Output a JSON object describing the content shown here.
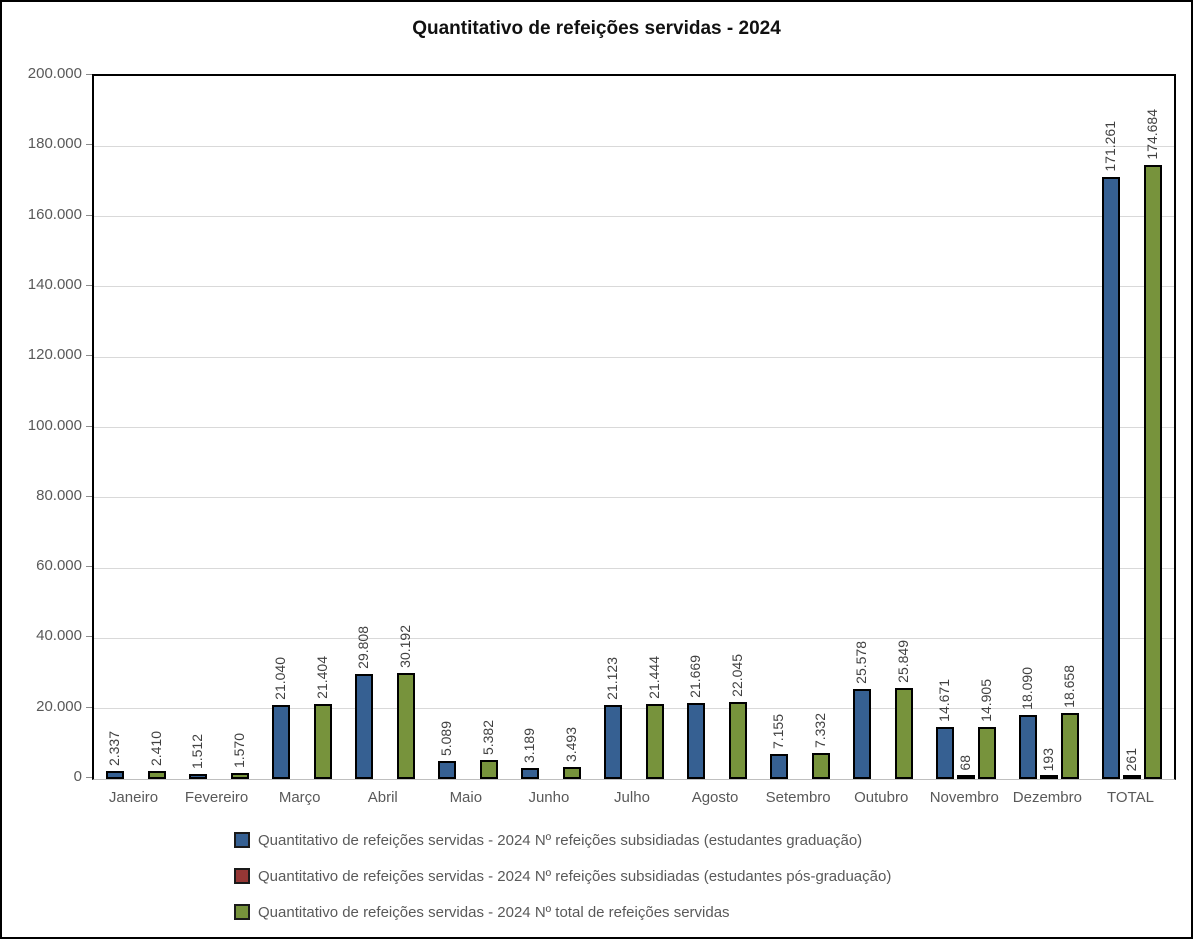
{
  "chart_data": {
    "type": "bar",
    "title": "Quantitativo de refeições servidas - 2024",
    "categories": [
      "Janeiro",
      "Fevereiro",
      "Março",
      "Abril",
      "Maio",
      "Junho",
      "Julho",
      "Agosto",
      "Setembro",
      "Outubro",
      "Novembro",
      "Dezembro",
      "TOTAL"
    ],
    "series": [
      {
        "name": "Quantitativo de refeições servidas - 2024 Nº refeições subsidiadas (estudantes graduação)",
        "color": "#366092",
        "values": [
          2337,
          1512,
          21040,
          29808,
          5089,
          3189,
          21123,
          21669,
          7155,
          25578,
          14671,
          18090,
          171261
        ]
      },
      {
        "name": "Quantitativo de refeições servidas - 2024 Nº refeições subsidiadas (estudantes pós-graduação)",
        "color": "#953735",
        "values": [
          0,
          0,
          0,
          0,
          0,
          0,
          0,
          0,
          0,
          0,
          68,
          193,
          261
        ]
      },
      {
        "name": "Quantitativo de refeições servidas - 2024 Nº total de refeições servidas",
        "color": "#77933C",
        "values": [
          2410,
          1570,
          21404,
          30192,
          5382,
          3493,
          21444,
          22045,
          7332,
          25849,
          14905,
          18658,
          174684
        ]
      }
    ],
    "ylim": [
      0,
      200000
    ],
    "ytick_step": 20000,
    "ytick_labels": [
      "0",
      "20.000",
      "40.000",
      "60.000",
      "80.000",
      "100.000",
      "120.000",
      "140.000",
      "160.000",
      "180.000",
      "200.000"
    ],
    "grid": true,
    "legend_position": "bottom-left",
    "number_format": "thousands separated by period",
    "data_labels_rotated": true,
    "colors": {
      "gridline": "#d9d9d9",
      "axis_text": "#595959",
      "data_label_text": "#404040",
      "bar_border": "#000000",
      "plot_border": "#000000"
    }
  }
}
